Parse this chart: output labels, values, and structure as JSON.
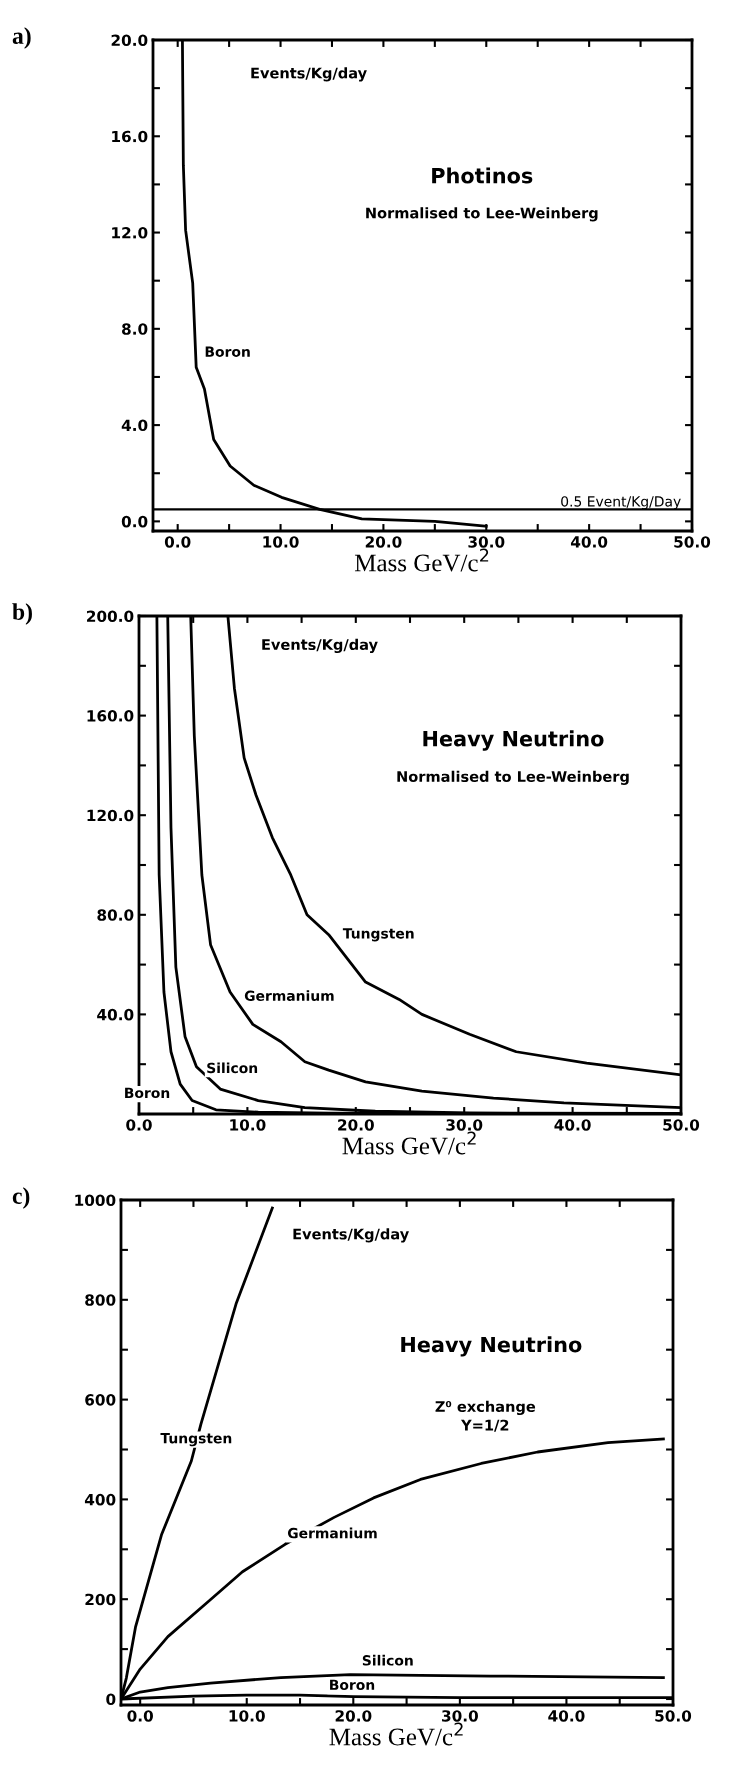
{
  "chart_data": [
    {
      "type": "line",
      "title": "Photinos",
      "subtitle": "Normalised to Lee-Weinberg",
      "xlabel": "Mass GeV/c$^{2}$",
      "ylabel": "Events/Kg/day",
      "annotations": [
        "a)"
      ],
      "xlim": [
        -2.4,
        50
      ],
      "ylim": [
        -0.4,
        20
      ],
      "xticks": [
        {
          "value": 0,
          "label": "0.0"
        },
        {
          "value": 5,
          "label": null
        },
        {
          "value": 10,
          "label": "10.0"
        },
        {
          "value": 15,
          "label": null
        },
        {
          "value": 20,
          "label": "20.0"
        },
        {
          "value": 25,
          "label": null
        },
        {
          "value": 30,
          "label": "30.0"
        },
        {
          "value": 35,
          "label": null
        },
        {
          "value": 40,
          "label": "40.0"
        },
        {
          "value": 45,
          "label": null
        },
        {
          "value": 50,
          "label": "50.0"
        }
      ],
      "yticks": [
        {
          "value": 0,
          "label": "0.0"
        },
        {
          "value": 2,
          "label": null
        },
        {
          "value": 4,
          "label": "4.0"
        },
        {
          "value": 6,
          "label": null
        },
        {
          "value": 8,
          "label": "8.0"
        },
        {
          "value": 10,
          "label": null
        },
        {
          "value": 12,
          "label": "12.0"
        },
        {
          "value": 14,
          "label": null
        },
        {
          "value": 16,
          "label": "16.0"
        },
        {
          "value": 18,
          "label": null
        },
        {
          "value": 20,
          "label": "20.0"
        }
      ],
      "ref_lines": [
        {
          "axis": "y",
          "value": 0.5,
          "label": "0.5 Event/Kg/Day",
          "color": "#000000"
        }
      ],
      "marker": "none",
      "line_style": "solid",
      "grid": false,
      "series": [
        {
          "name": "Boron",
          "color": "#000000",
          "x": [
            0.46,
            0.55,
            0.77,
            1.46,
            1.8,
            2.6,
            3.5,
            5.1,
            7.4,
            10.1,
            13.8,
            17.9,
            25,
            30
          ],
          "values": [
            20,
            14.8,
            12.1,
            9.9,
            6.4,
            5.5,
            3.4,
            2.3,
            1.5,
            1.0,
            0.5,
            0.1,
            0.0,
            -0.2
          ]
        }
      ]
    },
    {
      "type": "line",
      "title": "Heavy Neutrino",
      "subtitle": "Normalised to Lee-Weinberg",
      "xlabel": "Mass GeV/c$^{2}$",
      "ylabel": "Events/Kg/day",
      "annotations": [
        "b)"
      ],
      "xlim": [
        0,
        50
      ],
      "ylim": [
        0,
        200
      ],
      "xticks": [
        {
          "value": 0,
          "label": "0.0"
        },
        {
          "value": 5,
          "label": null
        },
        {
          "value": 10,
          "label": "10.0"
        },
        {
          "value": 15,
          "label": null
        },
        {
          "value": 20,
          "label": "20.0"
        },
        {
          "value": 25,
          "label": null
        },
        {
          "value": 30,
          "label": "30.0"
        },
        {
          "value": 35,
          "label": null
        },
        {
          "value": 40,
          "label": "40.0"
        },
        {
          "value": 45,
          "label": null
        },
        {
          "value": 50,
          "label": "50.0"
        }
      ],
      "yticks": [
        {
          "value": 20,
          "label": null
        },
        {
          "value": 40,
          "label": "40.0"
        },
        {
          "value": 60,
          "label": null
        },
        {
          "value": 80,
          "label": "80.0"
        },
        {
          "value": 100,
          "label": null
        },
        {
          "value": 120,
          "label": "120.0"
        },
        {
          "value": 140,
          "label": null
        },
        {
          "value": 160,
          "label": "160.0"
        },
        {
          "value": 180,
          "label": null
        },
        {
          "value": 200,
          "label": "200.0"
        }
      ],
      "marker": "none",
      "line_style": "solid",
      "grid": false,
      "series": [
        {
          "name": "Boron",
          "color": "#000000",
          "x": [
            1.65,
            1.86,
            2.3,
            2.95,
            3.8,
            4.9,
            7.1,
            11,
            17.5,
            30,
            50
          ],
          "values": [
            200,
            96,
            49,
            25,
            12,
            5.4,
            1.7,
            0.7,
            0.3,
            0.2,
            0.2
          ]
        },
        {
          "name": "Silicon",
          "color": "#000000",
          "x": [
            2.65,
            2.95,
            3.4,
            4.25,
            5.3,
            7.5,
            11,
            15.3,
            21.8,
            30.5,
            50
          ],
          "values": [
            200,
            115,
            59,
            31,
            19,
            10,
            5.4,
            2.6,
            1.1,
            0.4,
            0.2
          ]
        },
        {
          "name": "Germanium",
          "color": "#000000",
          "x": [
            4.77,
            5.1,
            5.8,
            6.6,
            8.4,
            10.5,
            13.1,
            15.3,
            17.5,
            20.9,
            26.1,
            32.7,
            39.2,
            50
          ],
          "values": [
            200,
            152,
            96,
            68,
            49,
            36,
            29,
            21,
            17.6,
            12.9,
            9.2,
            6.4,
            4.5,
            2.6
          ]
        },
        {
          "name": "Tungsten",
          "color": "#000000",
          "x": [
            8.2,
            8.8,
            9.7,
            10.8,
            12.3,
            14,
            15.5,
            17.5,
            20.9,
            24,
            26.1,
            30.5,
            34.8,
            41.3,
            50
          ],
          "values": [
            200,
            171,
            143,
            128,
            111,
            96,
            80,
            72,
            53,
            46,
            40,
            32,
            25,
            20.4,
            15.7
          ]
        }
      ]
    },
    {
      "type": "line",
      "title": "Heavy Neutrino",
      "subtitle": "Z⁰ exchange\nY=1/2",
      "xlabel": "Mass GeV/c$^{2}$",
      "ylabel": "Events/Kg/day",
      "annotations": [
        "c)"
      ],
      "xlim": [
        -1.8,
        50
      ],
      "ylim": [
        -12,
        1000
      ],
      "xticks": [
        {
          "value": 0,
          "label": "0.0"
        },
        {
          "value": 5,
          "label": null
        },
        {
          "value": 10,
          "label": "10.0"
        },
        {
          "value": 15,
          "label": null
        },
        {
          "value": 20,
          "label": "20.0"
        },
        {
          "value": 25,
          "label": null
        },
        {
          "value": 30,
          "label": "30.0"
        },
        {
          "value": 35,
          "label": null
        },
        {
          "value": 40,
          "label": "40.0"
        },
        {
          "value": 45,
          "label": null
        },
        {
          "value": 50,
          "label": "50.0"
        }
      ],
      "yticks": [
        0,
        {
          "value": 100,
          "label": null
        },
        200,
        {
          "value": 300,
          "label": null
        },
        400,
        {
          "value": 500,
          "label": null
        },
        600,
        {
          "value": 700,
          "label": null
        },
        800,
        {
          "value": 900,
          "label": null
        },
        1000
      ],
      "marker": "none",
      "line_style": "solid",
      "grid": false,
      "series": [
        {
          "name": "Tungsten",
          "color": "#000000",
          "x": [
            -1.8,
            -1.3,
            -0.44,
            2.0,
            4.8,
            5.7,
            9.0,
            12.4
          ],
          "values": [
            0,
            42,
            144,
            329,
            477,
            551,
            792,
            984
          ]
        },
        {
          "name": "Germanium",
          "color": "#000000",
          "x": [
            -1.8,
            0,
            2.6,
            6.1,
            9.6,
            13.6,
            18.2,
            21.9,
            26.3,
            32,
            37.3,
            43.9,
            49.1
          ],
          "values": [
            0,
            60,
            125,
            190,
            255,
            310,
            364,
            403,
            440,
            472,
            495,
            514,
            521
          ]
        },
        {
          "name": "Silicon",
          "color": "#000000",
          "x": [
            -1.8,
            0,
            2.6,
            6.6,
            13.2,
            19.7,
            32.9,
            49.1
          ],
          "values": [
            0,
            14,
            23,
            32,
            43,
            49,
            46,
            43
          ]
        },
        {
          "name": "Boron",
          "color": "#000000",
          "x": [
            -1.8,
            5,
            10,
            15,
            20,
            30,
            50
          ],
          "values": [
            0,
            6,
            8,
            8,
            5,
            3,
            3
          ]
        }
      ]
    }
  ]
}
